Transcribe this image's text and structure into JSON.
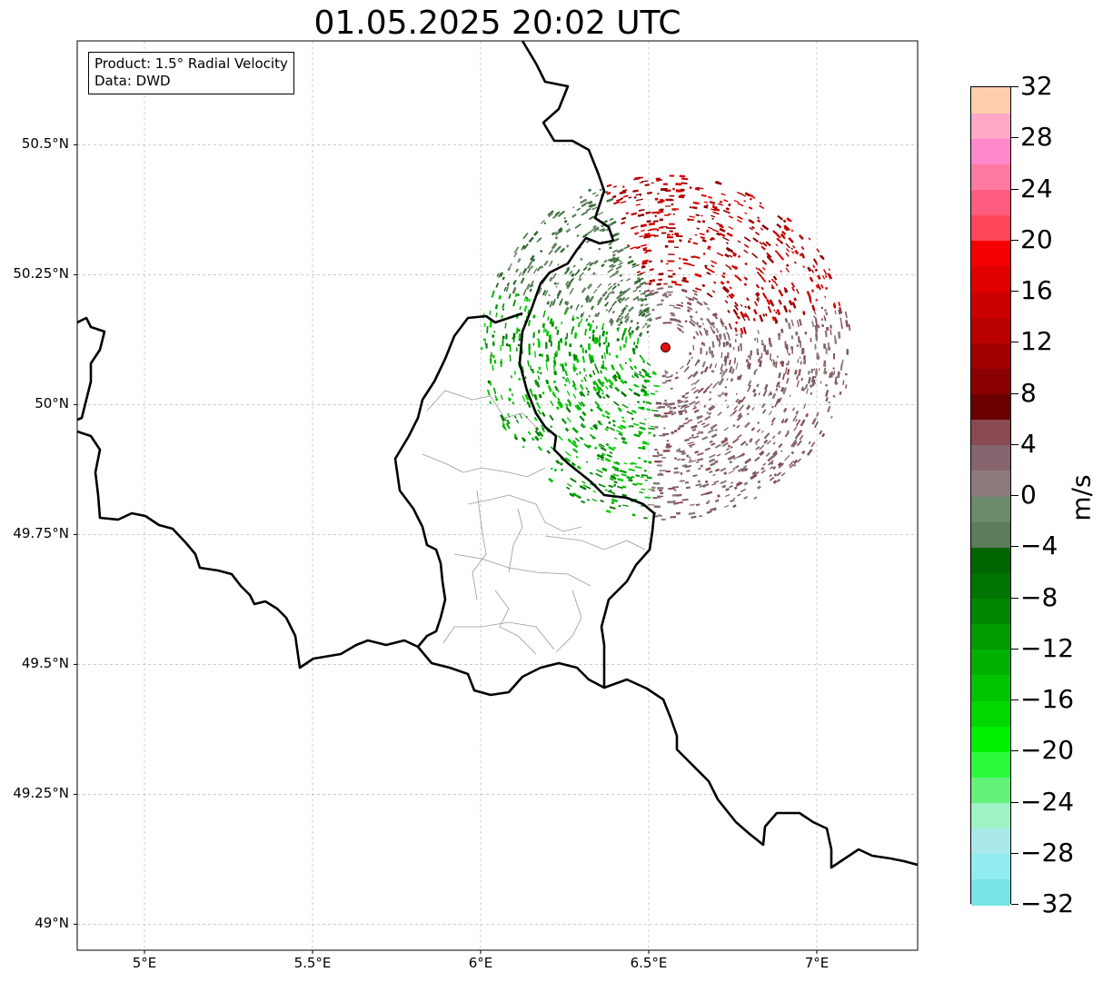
{
  "title": "01.05.2025 20:02 UTC",
  "info": {
    "product": "Product: 1.5° Radial Velocity",
    "data": "Data: DWD"
  },
  "map": {
    "lon_range": [
      4.8,
      7.3
    ],
    "lat_range": [
      48.95,
      50.7
    ],
    "lat_ticks": [
      {
        "value": 50.5,
        "label": "50.5°N"
      },
      {
        "value": 50.25,
        "label": "50.25°N"
      },
      {
        "value": 50.0,
        "label": "50°N"
      },
      {
        "value": 49.75,
        "label": "49.75°N"
      },
      {
        "value": 49.5,
        "label": "49.5°N"
      },
      {
        "value": 49.25,
        "label": "49.25°N"
      },
      {
        "value": 49.0,
        "label": "49°N"
      }
    ],
    "lon_ticks": [
      {
        "value": 5.0,
        "label": "5°E"
      },
      {
        "value": 5.5,
        "label": "5.5°E"
      },
      {
        "value": 6.0,
        "label": "6°E"
      },
      {
        "value": 6.5,
        "label": "6.5°E"
      },
      {
        "value": 7.0,
        "label": "7°E"
      }
    ],
    "radar_site": {
      "lon": 6.55,
      "lat": 50.11
    },
    "gridlines": true,
    "colors": {
      "border": "#000000",
      "admin": "#999999",
      "radar_marker": "#e01010"
    }
  },
  "colorbar": {
    "label": "m/s",
    "min": -32,
    "max": 32,
    "ticks": [
      32,
      28,
      24,
      20,
      16,
      12,
      8,
      4,
      0,
      -4,
      -8,
      -12,
      -16,
      -20,
      -24,
      -28,
      -32
    ],
    "colors": [
      "#78e4e8",
      "#90ecf0",
      "#aae8ea",
      "#9ef2c6",
      "#64f27a",
      "#2cfa3c",
      "#00f000",
      "#00d800",
      "#00c400",
      "#00b000",
      "#009c00",
      "#008800",
      "#007400",
      "#006400",
      "#5c7c5c",
      "#6a8a6a",
      "#8c7b7b",
      "#86646e",
      "#8a4a52",
      "#6a0000",
      "#8a0000",
      "#a00000",
      "#b80000",
      "#cc0000",
      "#e00000",
      "#f40000",
      "#ff4658",
      "#ff5c80",
      "#ff7aa0",
      "#ff88cc",
      "#ffa8c8",
      "#ffcfb0"
    ]
  }
}
